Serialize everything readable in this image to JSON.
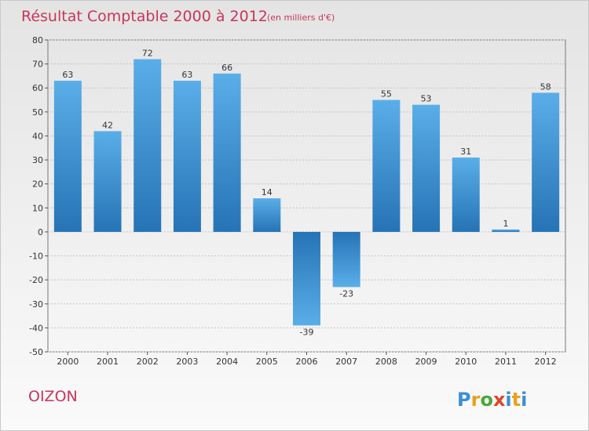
{
  "chart_data": {
    "type": "bar",
    "title": "Résultat Comptable 2000 à 2012",
    "subtitle": "(en milliers d'€)",
    "categories": [
      "2000",
      "2001",
      "2002",
      "2003",
      "2004",
      "2005",
      "2006",
      "2007",
      "2008",
      "2009",
      "2010",
      "2011",
      "2012"
    ],
    "values": [
      63,
      42,
      72,
      63,
      66,
      14,
      -39,
      -23,
      55,
      53,
      31,
      1,
      58
    ],
    "ylim": [
      -50,
      80
    ],
    "yticks": [
      80,
      70,
      60,
      50,
      40,
      30,
      20,
      10,
      0,
      -10,
      -20,
      -30,
      -40,
      -50
    ],
    "grid": true,
    "xlabel": "",
    "ylabel": ""
  },
  "commune": "OIZON",
  "logo": {
    "letters": [
      "P",
      "r",
      "o",
      "x",
      "i",
      "t",
      "i"
    ],
    "colors": [
      "#3a8ed6",
      "#e8a21a",
      "#4aa83a",
      "#e0432a",
      "#3a8ed6",
      "#e8a21a",
      "#3a8ed6"
    ]
  },
  "colors": {
    "bar_dark": "#2673b5",
    "bar_light": "#5aaee8",
    "title": "#c8355a",
    "grid": "#c4c4c4"
  }
}
